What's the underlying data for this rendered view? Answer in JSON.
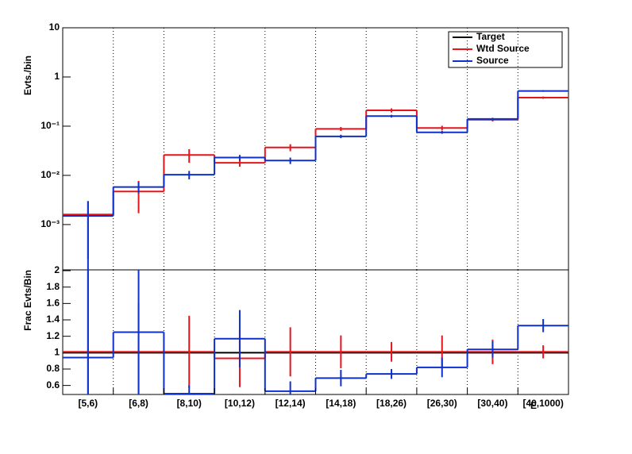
{
  "chart_data": [
    {
      "type": "step",
      "y_label": "Evts./bin",
      "log_y": true,
      "ylim": [
        0.00012,
        10
      ],
      "yticks": [
        {
          "value": 0.001,
          "label": "10⁻³"
        },
        {
          "value": 0.01,
          "label": "10⁻²"
        },
        {
          "value": 0.1,
          "label": "10⁻¹"
        },
        1,
        10
      ],
      "grid_x": true,
      "legend": "top-right",
      "series": [
        {
          "name": "Target",
          "color": "#000000",
          "values": [
            null,
            null,
            null,
            null,
            null,
            null,
            null,
            null,
            null,
            null
          ],
          "errors": [
            null,
            null,
            null,
            null,
            null,
            null,
            null,
            null,
            null,
            null
          ]
        },
        {
          "name": "Wtd Source",
          "color": "#e8141c",
          "values": [
            0.0016,
            0.0047,
            0.026,
            0.018,
            0.037,
            0.088,
            0.21,
            0.092,
            0.135,
            0.38
          ],
          "errors": [
            0.0014,
            0.003,
            0.008,
            0.003,
            0.006,
            0.008,
            0.02,
            0.01,
            0.01,
            0.02
          ]
        },
        {
          "name": "Source",
          "color": "#1030c8",
          "values": [
            0.0015,
            0.0058,
            0.0103,
            0.023,
            0.02,
            0.062,
            0.16,
            0.075,
            0.14,
            0.52
          ],
          "errors": [
            0.0015,
            0.0015,
            0.002,
            0.003,
            0.003,
            0.005,
            0.01,
            0.005,
            0.008,
            0.02
          ]
        }
      ]
    },
    {
      "type": "step",
      "y_label": "Frac Evts/Bin",
      "x_label": "E",
      "categories": [
        "[5,6)",
        "[6,8)",
        "[8,10)",
        "[10,12)",
        "[12,14)",
        "[14,18)",
        "[18,26)",
        "[26,30)",
        "[30,40)",
        "[40,1000)"
      ],
      "ylim": [
        0.49,
        2.01
      ],
      "yticks": [
        0.6,
        0.8,
        1,
        1.2,
        1.4,
        1.6,
        1.8,
        2
      ],
      "grid_x": true,
      "series": [
        {
          "name": "Target",
          "color": "#000000",
          "values": [
            1,
            1,
            1,
            1,
            1,
            1,
            1,
            1,
            1,
            1
          ],
          "errors": [
            null,
            null,
            null,
            null,
            null,
            null,
            null,
            null,
            null,
            null
          ]
        },
        {
          "name": "Wtd Source",
          "color": "#e8141c",
          "values": [
            1.01,
            1.01,
            1.01,
            0.93,
            1.01,
            1.01,
            1.01,
            1.01,
            1.01,
            1.01
          ],
          "errors": [
            1.0,
            0.6,
            0.44,
            0.35,
            0.3,
            0.2,
            0.12,
            0.2,
            0.15,
            0.08
          ]
        },
        {
          "name": "Source",
          "color": "#1030c8",
          "values": [
            0.94,
            1.25,
            0.5,
            1.17,
            0.53,
            0.69,
            0.74,
            0.82,
            1.04,
            1.33
          ],
          "errors": [
            1.1,
            0.8,
            0.1,
            0.35,
            0.12,
            0.1,
            0.06,
            0.12,
            0.1,
            0.08
          ]
        }
      ]
    }
  ]
}
